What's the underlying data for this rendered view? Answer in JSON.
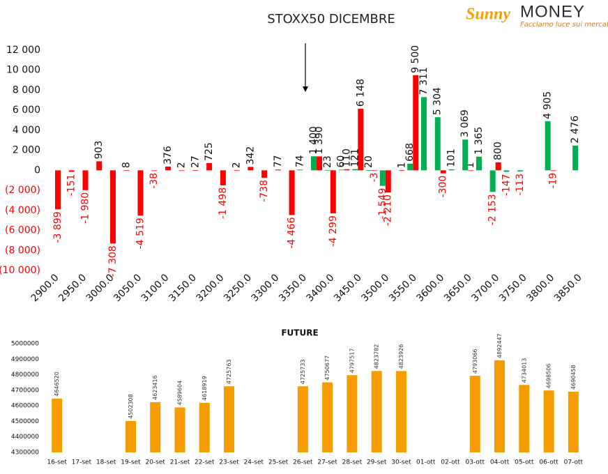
{
  "logo": {
    "brand_a": "Sunny",
    "brand_b": "MONEY",
    "tagline": "Facciamo luce sui mercati"
  },
  "chart_data": [
    {
      "type": "bar",
      "title": "STOXX50 DICEMBRE",
      "categories": [
        "2900.0",
        null,
        "2950.0",
        null,
        "3000.0",
        null,
        "3050.0",
        null,
        "3100.0",
        null,
        "3150.0",
        null,
        "3200.0",
        null,
        "3250.0",
        null,
        "3300.0",
        null,
        "3350.0",
        null,
        "3400.0",
        null,
        "3450.0",
        null,
        "3500.0",
        null,
        "3550.0",
        null,
        "3600.0",
        null,
        "3650.0",
        null,
        "3700.0",
        null,
        "3750.0",
        null,
        "3800.0",
        null,
        "3850.0"
      ],
      "series": [
        {
          "color": "#ff0000",
          "values": [
            -3899,
            -151,
            -1980,
            903,
            -7308,
            8,
            -4519,
            -38,
            376,
            2,
            27,
            725,
            -1498,
            2,
            342,
            -738,
            77,
            -4466,
            null,
            1390,
            -4299,
            110,
            6148,
            -3,
            -2210,
            1,
            9500,
            null,
            -300,
            null,
            1,
            null,
            800,
            null,
            null,
            null,
            -19,
            null,
            null
          ],
          "value_labels": [
            "-3 899",
            "-151",
            "-1 980",
            "903",
            "-7 308",
            "8",
            "-4 519",
            "-38",
            "376",
            "2",
            "27",
            "725",
            "-1 498",
            "2",
            "342",
            "-738",
            "77",
            "-4 466",
            null,
            "1 390",
            "-4 299",
            "110",
            "6 148",
            "-3",
            "-2 210",
            "1",
            "9 500",
            null,
            "-300",
            null,
            "1",
            null,
            "800",
            null,
            null,
            null,
            "-19",
            null,
            null
          ]
        },
        {
          "color": "#00b050",
          "values": [
            null,
            null,
            null,
            null,
            null,
            null,
            null,
            null,
            null,
            null,
            null,
            null,
            null,
            null,
            null,
            null,
            null,
            null,
            74,
            1400,
            23,
            60,
            121,
            20,
            -1549,
            null,
            668,
            7311,
            5304,
            101,
            3069,
            1365,
            -2153,
            -147,
            -113,
            null,
            4905,
            null,
            2476
          ],
          "value_labels": [
            null,
            null,
            null,
            null,
            null,
            null,
            null,
            null,
            null,
            null,
            null,
            null,
            null,
            null,
            null,
            null,
            null,
            null,
            "74",
            "1 400",
            "23",
            "60",
            "121",
            "20",
            "-1 549",
            null,
            "668",
            "7 311",
            "5 304",
            "101",
            "3 069",
            "1 365",
            "-2 153",
            "-147",
            "-113",
            null,
            "4 905",
            null,
            "2 476"
          ]
        }
      ],
      "ylim": [
        -10000,
        12000
      ],
      "yticks": [
        {
          "value": -10000,
          "label": "(10 000)"
        },
        {
          "value": -8000,
          "label": "(8 000)"
        },
        {
          "value": -6000,
          "label": "(6 000)"
        },
        {
          "value": -4000,
          "label": "(4 000)"
        },
        {
          "value": -2000,
          "label": "(2 000)"
        },
        0,
        {
          "value": 2000,
          "label": "2 000"
        },
        {
          "value": 4000,
          "label": "4 000"
        },
        {
          "value": 6000,
          "label": "6 000"
        },
        {
          "value": 8000,
          "label": "8 000"
        },
        {
          "value": 10000,
          "label": "10 000"
        },
        {
          "value": 12000,
          "label": "12 000"
        }
      ]
    },
    {
      "type": "bar",
      "title": "FUTURE",
      "color": "#f59c00",
      "categories": [
        "16-set",
        "17-set",
        "18-set",
        "19-set",
        "20-set",
        "21-set",
        "22-set",
        "23-set",
        "24-set",
        "25-set",
        "26-set",
        "27-set",
        "28-set",
        "29-set",
        "30-set",
        "01-ott",
        "02-ott",
        "03-ott",
        "04-ott",
        "05-ott",
        "06-ott",
        "07-ott"
      ],
      "values": [
        4646520,
        null,
        null,
        4502308,
        4623416,
        4589604,
        4618919,
        4725763,
        null,
        null,
        4725733,
        4750677,
        4797517,
        4823782,
        4823926,
        null,
        null,
        4793066,
        4892447,
        4734013,
        4698506,
        4690458
      ],
      "ylim": [
        4300000,
        5000000
      ],
      "yticks": [
        4300000,
        4400000,
        4500000,
        4600000,
        4700000,
        4800000,
        4900000,
        5000000
      ]
    }
  ]
}
